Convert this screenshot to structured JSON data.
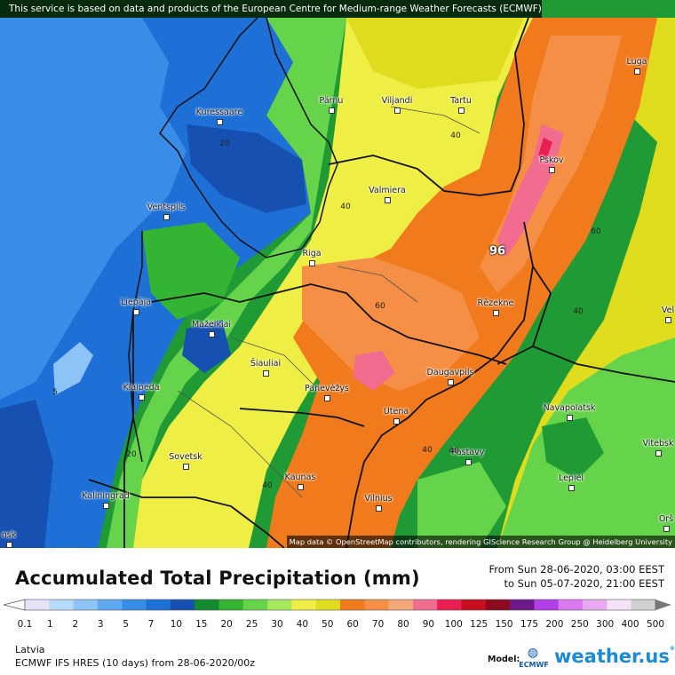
{
  "banner": "This service is based on data and products of the European Centre for Medium-range Weather Forecasts (ECMWF)",
  "attribution": "Map data © OpenStreetMap contributors, rendering GIScience Research Group @ Heidelberg University",
  "cities": [
    {
      "name": "Kuressaare",
      "id": "kuressaare"
    },
    {
      "name": "Pärnu",
      "id": "parnu"
    },
    {
      "name": "Viljandi",
      "id": "viljandi"
    },
    {
      "name": "Tartu",
      "id": "tartu"
    },
    {
      "name": "Luga",
      "id": "luga"
    },
    {
      "name": "Pskov",
      "id": "pskov"
    },
    {
      "name": "Valmiera",
      "id": "valmiera"
    },
    {
      "name": "Ventspils",
      "id": "ventspils"
    },
    {
      "name": "Riga",
      "id": "riga"
    },
    {
      "name": "Liepāja",
      "id": "liepaja"
    },
    {
      "name": "Rēzekne",
      "id": "rezekne"
    },
    {
      "name": "Mažeikiai",
      "id": "mazeikiai"
    },
    {
      "name": "Šiauliai",
      "id": "siauliai"
    },
    {
      "name": "Daugavpils",
      "id": "daugavpils"
    },
    {
      "name": "Klaipėda",
      "id": "klaipeda"
    },
    {
      "name": "Panevėžys",
      "id": "panevezys"
    },
    {
      "name": "Utena",
      "id": "utena"
    },
    {
      "name": "Navapolatsk",
      "id": "navapolatsk"
    },
    {
      "name": "Vitebsk",
      "id": "vitebsk"
    },
    {
      "name": "Sovetsk",
      "id": "sovetsk"
    },
    {
      "name": "Pastavy",
      "id": "pastavy"
    },
    {
      "name": "Kaunas",
      "id": "kaunas"
    },
    {
      "name": "Lepiel",
      "id": "lepiel"
    },
    {
      "name": "Kaliningrad",
      "id": "kaliningrad"
    },
    {
      "name": "Vilnius",
      "id": "vilnius"
    },
    {
      "name": "Orš",
      "id": "orsha"
    },
    {
      "name": "Vel",
      "id": "velikie"
    },
    {
      "name": "nsk",
      "id": "nsk"
    }
  ],
  "contour_labels": [
    "20",
    "40",
    "40",
    "40",
    "60",
    "60",
    "40",
    "5",
    "40",
    "20",
    "40"
  ],
  "max_value": "96",
  "legend": {
    "title": "Accumulated Total Precipitation (mm)",
    "from": "From Sun 28-06-2020, 03:00 EEST",
    "to": "to Sun 05-07-2020, 21:00 EEST",
    "ticks": [
      "0.1",
      "1",
      "2",
      "3",
      "5",
      "7",
      "10",
      "15",
      "20",
      "25",
      "30",
      "40",
      "50",
      "60",
      "70",
      "80",
      "90",
      "100",
      "125",
      "150",
      "175",
      "200",
      "250",
      "300",
      "400",
      "500"
    ],
    "colors": [
      "#e6e3f7",
      "#b7dafa",
      "#8ec3f7",
      "#5ea9f0",
      "#3a8de6",
      "#1e6fd6",
      "#1650b0",
      "#138a2e",
      "#33b533",
      "#66d44a",
      "#a6e85a",
      "#eeee44",
      "#dedc1c",
      "#f07a1c",
      "#f58f46",
      "#f5a878",
      "#f26c8f",
      "#e91f52",
      "#c80f20",
      "#8e0a1e",
      "#6c1a8a",
      "#b13ee6",
      "#d97af0",
      "#e9a9f2",
      "#f3e2f8",
      "#d0d0d0"
    ],
    "region": "Latvia",
    "model_run": "ECMWF IFS HRES (10 days) from 28-06-2020/00z",
    "model_label": "Model:",
    "model_logo_text": "ECMWF",
    "brand": "weather.us",
    "brand_sup": "®"
  }
}
